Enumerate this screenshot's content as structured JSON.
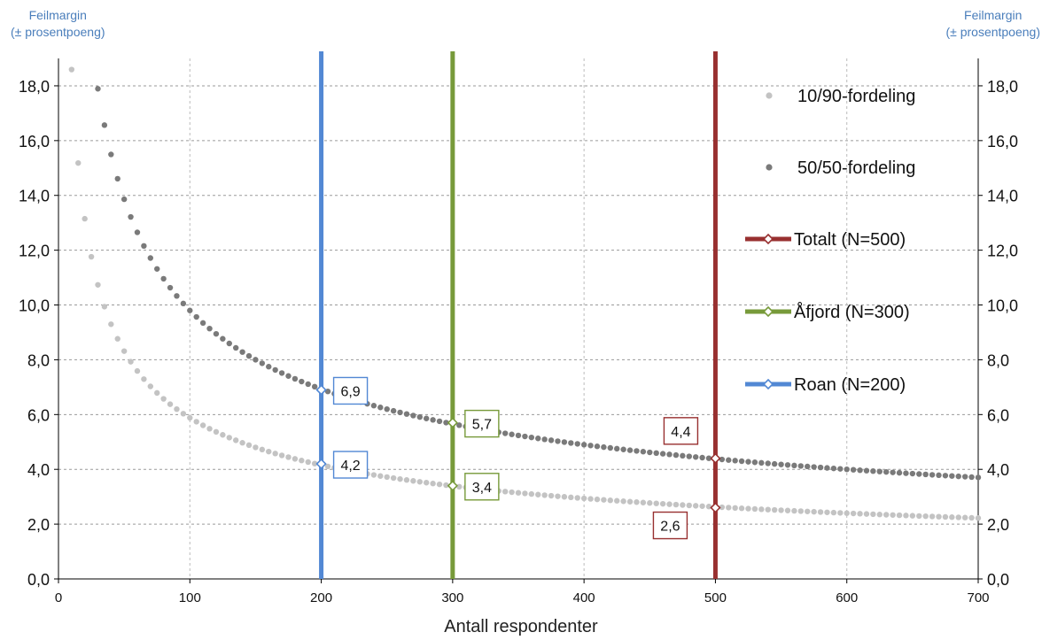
{
  "chart_data": {
    "type": "scatter",
    "xlabel": "Antall respondenter",
    "ylabel_left": [
      "Feilmargin",
      "(± prosentpoeng)"
    ],
    "ylabel_right": [
      "Feilmargin",
      "(± prosentpoeng)"
    ],
    "xlim": [
      0,
      700
    ],
    "ylim": [
      0,
      19
    ],
    "x_ticks": [
      0,
      100,
      200,
      300,
      400,
      500,
      600,
      700
    ],
    "x_tick_labels": [
      "0",
      "100",
      "200",
      "300",
      "400",
      "500",
      "600",
      "700"
    ],
    "y_ticks": [
      0,
      2,
      4,
      6,
      8,
      10,
      12,
      14,
      16,
      18
    ],
    "y_tick_labels": [
      "0,0",
      "2,0",
      "4,0",
      "6,0",
      "8,0",
      "10,0",
      "12,0",
      "14,0",
      "16,0",
      "18,0"
    ],
    "grid": true,
    "legend_position": "right",
    "series": [
      {
        "name": "10/90-fordeling",
        "kind": "points",
        "color": "#c3c3c3",
        "p": 0.1,
        "x_start": 10,
        "x_end": 700,
        "x_step": 5
      },
      {
        "name": "50/50-fordeling",
        "kind": "points",
        "color": "#7a7a7a",
        "p": 0.5,
        "x_start": 30,
        "x_end": 700,
        "x_step": 5
      },
      {
        "name": "Totalt (N=500)",
        "kind": "vline",
        "x": 500,
        "color": "#983030",
        "markers": [
          {
            "y": 4.4,
            "label": "4,4",
            "label_side": "above-left"
          },
          {
            "y": 2.6,
            "label": "2,6",
            "label_side": "below-left"
          }
        ]
      },
      {
        "name": "Åfjord (N=300)",
        "kind": "vline",
        "x": 300,
        "color": "#779a3a",
        "markers": [
          {
            "y": 5.7,
            "label": "5,7",
            "label_side": "right"
          },
          {
            "y": 3.4,
            "label": "3,4",
            "label_side": "right"
          }
        ]
      },
      {
        "name": "Roan (N=200)",
        "kind": "vline",
        "x": 200,
        "color": "#5288d4",
        "markers": [
          {
            "y": 6.9,
            "label": "6,9",
            "label_side": "right"
          },
          {
            "y": 4.2,
            "label": "4,2",
            "label_side": "right"
          }
        ]
      }
    ]
  }
}
